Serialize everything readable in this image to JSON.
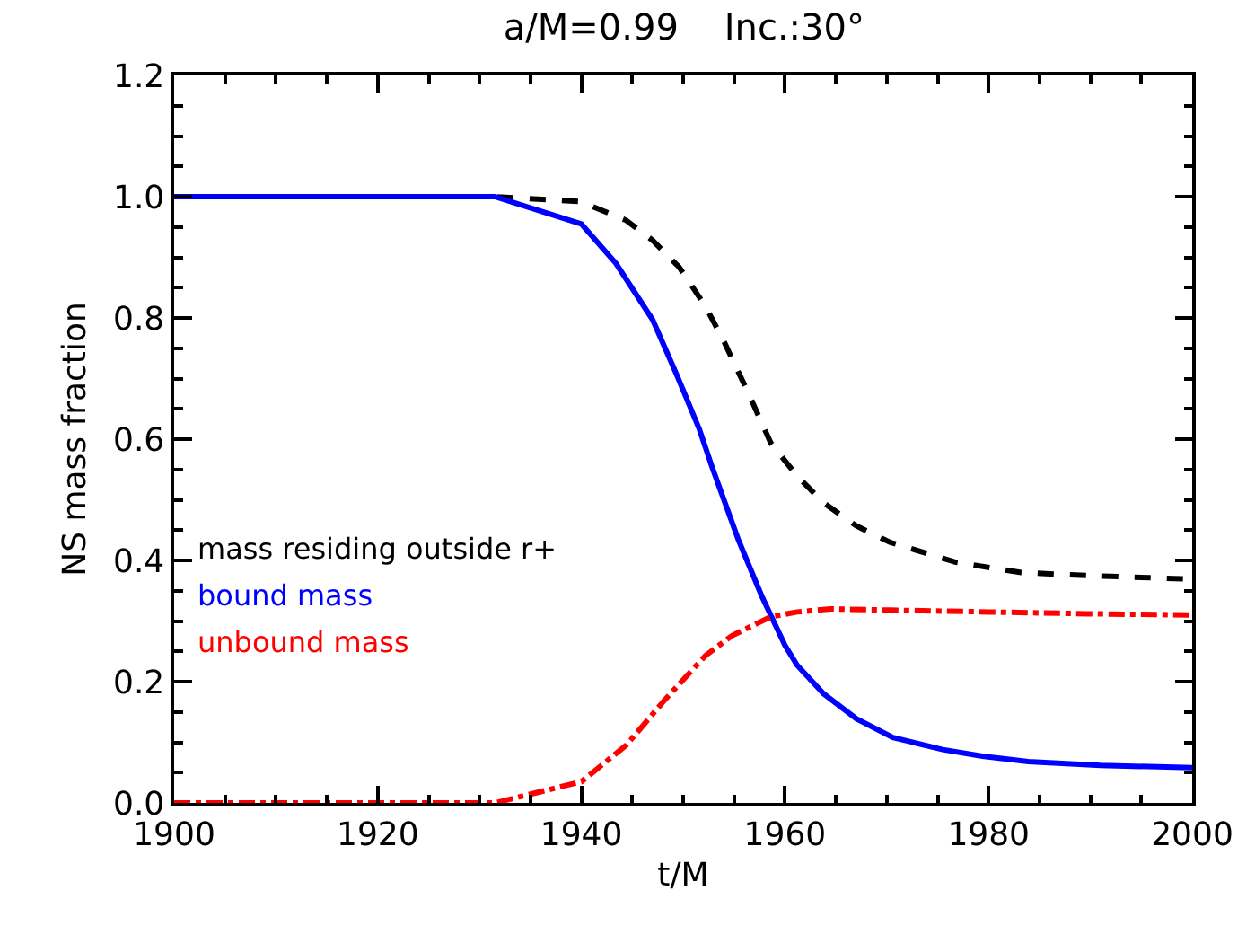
{
  "chart_data": {
    "type": "line",
    "title": "a/M=0.99    Inc.:30°",
    "xlabel": "t/M",
    "ylabel": "NS mass fraction",
    "xlim": [
      1900,
      2000
    ],
    "xticks": [
      1900,
      1920,
      1940,
      1960,
      1980,
      2000
    ],
    "ylim": [
      0,
      1.2
    ],
    "yticks": [
      {
        "value": 0,
        "label": "0.0"
      },
      0.2,
      0.4,
      0.6,
      0.8,
      {
        "value": 1,
        "label": "1.0"
      },
      1.2
    ],
    "grid": false,
    "legend": "left",
    "marker": "none",
    "series": [
      {
        "name": "mass residing outside r+",
        "color": "#000000",
        "line_style": "dashed",
        "x": [
          1900,
          1931.5,
          1939.9,
          1944.4,
          1947,
          1949.6,
          1952.2,
          1954.1,
          1956.4,
          1958.6,
          1961.2,
          1963.8,
          1967,
          1970.3,
          1976.8,
          1983.2,
          1989.7,
          2000
        ],
        "values": [
          1.0,
          1.0,
          0.992,
          0.961,
          0.928,
          0.884,
          0.819,
          0.758,
          0.676,
          0.594,
          0.539,
          0.495,
          0.457,
          0.43,
          0.397,
          0.38,
          0.375,
          0.369
        ]
      },
      {
        "name": "bound mass",
        "color": "#0000ff",
        "line_style": "solid",
        "x": [
          1900,
          1931.5,
          1940,
          1943.4,
          1947,
          1949.3,
          1951.6,
          1952.8,
          1955.4,
          1957.7,
          1960,
          1961.2,
          1963.8,
          1967,
          1970.6,
          1975.5,
          1979.4,
          1983.9,
          1991,
          2000
        ],
        "values": [
          1.0,
          1.0,
          0.955,
          0.89,
          0.797,
          0.709,
          0.616,
          0.556,
          0.435,
          0.342,
          0.26,
          0.227,
          0.18,
          0.139,
          0.108,
          0.088,
          0.077,
          0.068,
          0.062,
          0.058
        ]
      },
      {
        "name": "unbound mass",
        "color": "#ff0000",
        "line_style": "dashdot",
        "x": [
          1900,
          1931.5,
          1940,
          1944.4,
          1948.3,
          1952.2,
          1954.8,
          1958.6,
          1961.2,
          1964.5,
          1970.3,
          1980,
          1989.7,
          2000
        ],
        "values": [
          0,
          0,
          0.035,
          0.095,
          0.172,
          0.243,
          0.276,
          0.307,
          0.315,
          0.32,
          0.318,
          0.315,
          0.312,
          0.31
        ]
      }
    ]
  }
}
